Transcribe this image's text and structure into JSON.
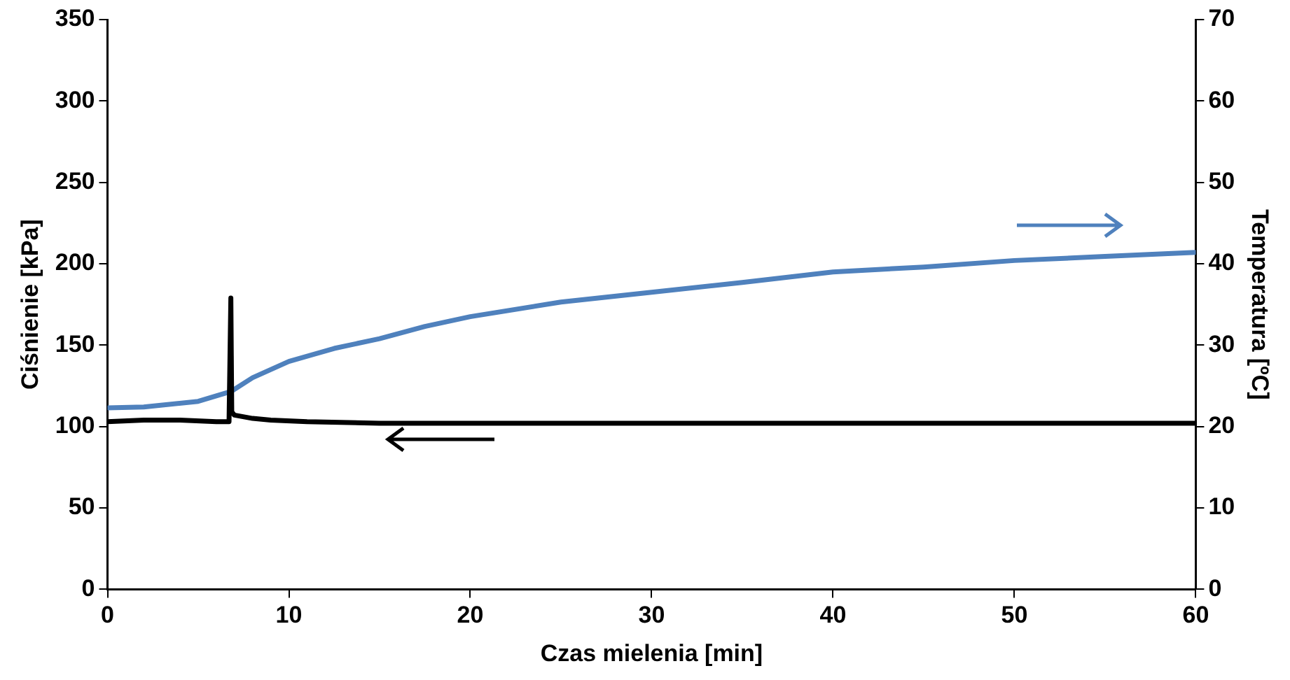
{
  "chart_data": {
    "type": "line",
    "xlabel": "Czas mielenia [min]",
    "ylabel": "Ciśnienie [kPa]",
    "y2label": "Temperatura [ºC]",
    "xlim": [
      0,
      60
    ],
    "xticks": [
      0,
      10,
      20,
      30,
      40,
      50,
      60
    ],
    "ylim": [
      0,
      350
    ],
    "yticks": [
      0,
      50,
      100,
      150,
      200,
      250,
      300,
      350
    ],
    "y2lim": [
      0,
      70
    ],
    "y2ticks": [
      0,
      10,
      20,
      30,
      40,
      50,
      60,
      70
    ],
    "grid": false,
    "legend": false,
    "marker": "none",
    "line_style": "solid",
    "series": [
      {
        "color": "#000000",
        "x": [
          0,
          2,
          4,
          6,
          6.7,
          6.8,
          6.85,
          7,
          8,
          9,
          11,
          15,
          20,
          30,
          40,
          50,
          60
        ],
        "values": [
          103,
          104,
          104,
          103,
          103,
          179,
          109,
          107,
          105,
          104,
          103,
          102,
          102,
          102,
          102,
          102,
          102
        ]
      },
      {
        "color": "#4f81bd",
        "axis": "y2",
        "x": [
          0,
          2,
          5,
          6.8,
          8,
          10,
          12.5,
          15,
          17.5,
          20,
          25,
          30,
          35,
          40,
          45,
          50,
          55,
          60
        ],
        "values": [
          22.3,
          22.4,
          23.1,
          24.3,
          26.0,
          28.0,
          29.6,
          30.8,
          32.3,
          33.5,
          35.3,
          36.5,
          37.7,
          39.0,
          39.6,
          40.4,
          40.9,
          41.4
        ]
      }
    ]
  }
}
